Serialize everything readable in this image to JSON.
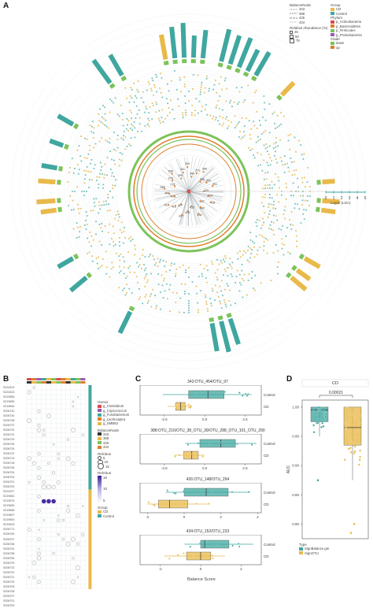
{
  "panels": {
    "a": "A",
    "b": "B",
    "c": "C",
    "d": "D"
  },
  "colors": {
    "cd": "#e9b94a",
    "control": "#3fa79f",
    "actinobacteria": "#d94a4a",
    "bacteroidetes": "#e07d2b",
    "firmicutes": "#7cc35a",
    "proteobacteria": "#9b59b6",
    "down": "#7cc35a",
    "up": "#e07d2b"
  },
  "legend_a": {
    "balance_title": "BalanceNode",
    "balance_items": [
      "343",
      "388",
      "426",
      "434"
    ],
    "relab_title": "Relative Abundance (%)",
    "relab_items": [
      "25",
      "50",
      "75"
    ],
    "group_title": "Group",
    "group_items": [
      "CD",
      "Control"
    ],
    "phylum_title": "Phylum",
    "phylum_items": [
      "p_Actinobacteria",
      "p_Bacteroidetes",
      "p_Firmicutes",
      "p_Proteobacteria"
    ],
    "clade_title": "Clade",
    "clade_items": [
      "down",
      "up"
    ],
    "lda_label": "Log10 (LDA)",
    "lda_ticks": [
      "0",
      "1",
      "2",
      "3",
      "4",
      "5"
    ]
  },
  "inner_nodes": [
    "429",
    "424",
    "436",
    "437",
    "442",
    "434",
    "433",
    "426",
    "427",
    "427",
    "416",
    "414",
    "410",
    "409",
    "258",
    "275",
    "278",
    "258",
    "309",
    "341",
    "343",
    "340",
    "371",
    "380",
    "386",
    "390",
    "391"
  ],
  "panel_b": {
    "samples": [
      "S224324",
      "S224323",
      "S219656",
      "S219655",
      "S219654",
      "S206742",
      "S206740",
      "S206738",
      "S206737",
      "S206732",
      "S206731",
      "S206729",
      "S206726",
      "S206725",
      "S206722",
      "S206719",
      "S206718",
      "S206706",
      "S206704",
      "S206703",
      "S206701",
      "S206700",
      "S224327",
      "S219681",
      "S219679",
      "S219659",
      "S219658",
      "S219657",
      "S219653",
      "S219633",
      "S206771",
      "S206769",
      "S206767",
      "S206766",
      "S206761",
      "S206758",
      "S206750",
      "S206729",
      "S206723",
      "S206722",
      "S206721",
      "S206720",
      "S206709",
      "S206708",
      "S206707",
      "S206701",
      "S206700"
    ],
    "otus": [
      "OTU_216",
      "OTU_152",
      "OTU_454",
      "OTU_288",
      "OTU_101",
      "OTU_233",
      "OTU_148",
      "OTU_290",
      "OTU_294",
      "OTU_97",
      "OTU_39",
      "OTU_38"
    ],
    "genus_title": "Genus",
    "genus_items": [
      "g_Clostridium",
      "g_Coprococcus",
      "g_Fusobacterium",
      "g_Lachnospira",
      "g_SMB53"
    ],
    "balance_title": "BalanceNode",
    "balance_items": [
      "343",
      "388",
      "426",
      "434"
    ],
    "relabun_title": "RelAbun",
    "relabun_items": [
      "5",
      "10",
      "15"
    ],
    "relabun2_title": "RelAbun",
    "relabun2_ticks": [
      "15",
      "10",
      "5"
    ],
    "group_title": "Group",
    "group_items": [
      "CD",
      "Control"
    ]
  },
  "panel_c": {
    "subplots": [
      {
        "title": "343:OTU_454/OTU_97",
        "control_median": 0.2,
        "control_q": [
          -1.0,
          1.2
        ],
        "control_w": [
          -2.6,
          2.9
        ],
        "cd_median": -1.5,
        "cd_q": [
          -1.8,
          -1.2
        ],
        "cd_w": [
          -2.3,
          -0.8
        ],
        "xticks": [
          "-2.5",
          "0.0",
          "2.5"
        ],
        "xlim": [
          -4,
          3.5
        ]
      },
      {
        "title": "388:OTU_216/OTU_38_OTU_39/OTU_288_OTU_101_OTU_290",
        "control_median": 1.0,
        "control_q": [
          -0.3,
          1.9
        ],
        "control_w": [
          -1.2,
          3.2
        ],
        "cd_median": -0.8,
        "cd_q": [
          -1.3,
          -0.4
        ],
        "cd_w": [
          -1.9,
          0.0
        ],
        "xticks": [
          "-2.5",
          "0.0",
          "2.5"
        ],
        "xlim": [
          -4,
          3.5
        ]
      },
      {
        "title": "426:OTU_148/OTU_294",
        "control_median": 1.2,
        "control_q": [
          0.0,
          2.4
        ],
        "control_w": [
          -1.0,
          3.6
        ],
        "cd_median": -0.8,
        "cd_q": [
          -1.4,
          0.2
        ],
        "cd_w": [
          -2.0,
          1.4
        ],
        "xticks": [
          "-2",
          "0",
          "2",
          "4"
        ],
        "xlim": [
          -2.4,
          4.2
        ]
      },
      {
        "title": "434:OTU_152/OTU_233",
        "control_median": 0.2,
        "control_q": [
          0.0,
          1.4
        ],
        "control_w": [
          -0.8,
          2.6
        ],
        "cd_median": 0.0,
        "cd_q": [
          -0.7,
          0.5
        ],
        "cd_w": [
          -1.8,
          1.2
        ],
        "xticks": [
          "-2",
          "0",
          "2"
        ],
        "xlim": [
          -3,
          3
        ]
      }
    ],
    "group_labels": [
      "Control",
      "CD"
    ],
    "xlabel": "Balance Score"
  },
  "panel_d": {
    "title": "CD",
    "pvalue": "0.00021",
    "ylabel": "AUC",
    "yticks": [
      "0.80",
      "0.85",
      "0.90",
      "0.95",
      "1.00"
    ],
    "ylim": [
      0.775,
      1.012
    ],
    "legend_title": "Type",
    "legend_items": [
      "SignBalance.gm",
      "SignOTU"
    ],
    "signbalance": {
      "q1": 0.975,
      "median": 0.995,
      "q3": 1.0,
      "wlo": 0.95,
      "whi": 1.0
    },
    "signotu": {
      "q1": 0.935,
      "median": 0.965,
      "q3": 1.0,
      "wlo": 0.875,
      "whi": 1.0
    }
  }
}
